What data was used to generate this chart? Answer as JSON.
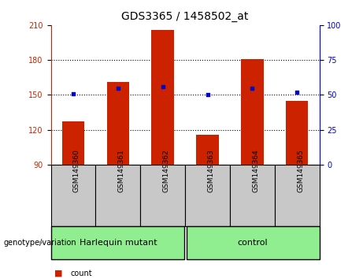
{
  "title": "GDS3365 / 1458502_at",
  "samples": [
    "GSM149360",
    "GSM149361",
    "GSM149362",
    "GSM149363",
    "GSM149364",
    "GSM149365"
  ],
  "counts": [
    127,
    161,
    206,
    116,
    181,
    145
  ],
  "percentiles": [
    51,
    55,
    56,
    50,
    55,
    52
  ],
  "groups": [
    {
      "label": "Harlequin mutant",
      "n": 3
    },
    {
      "label": "control",
      "n": 3
    }
  ],
  "ylim_left": [
    90,
    210
  ],
  "ylim_right": [
    0,
    100
  ],
  "yticks_left": [
    90,
    120,
    150,
    180,
    210
  ],
  "yticks_right": [
    0,
    25,
    50,
    75,
    100
  ],
  "bar_color": "#cc2200",
  "dot_color": "#0000cc",
  "bar_width": 0.5,
  "bg_color_plot": "#ffffff",
  "bg_color_label": "#c8c8c8",
  "bg_color_group": "#90ee90",
  "legend_count_color": "#cc2200",
  "legend_percentile_color": "#0000cc",
  "genotype_label": "genotype/variation",
  "title_fontsize": 10,
  "tick_fontsize": 7,
  "label_fontsize": 6.5,
  "group_fontsize": 8,
  "legend_fontsize": 7,
  "grid_yticks": [
    120,
    150,
    180
  ]
}
